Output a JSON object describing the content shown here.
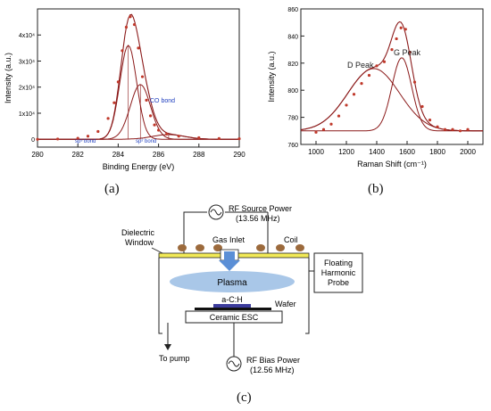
{
  "chart_data": [
    {
      "id": "a",
      "type": "line",
      "caption": "(a)",
      "xlabel": "Binding Energy (eV)",
      "ylabel": "Intensity (a.u.)",
      "xlim": [
        280,
        290
      ],
      "ylim": [
        -3000,
        50000
      ],
      "x_ticks": [
        280,
        282,
        284,
        286,
        288,
        290
      ],
      "x_tick_labels": [
        "280",
        "282",
        "284",
        "286",
        "288",
        "290"
      ],
      "y_ticks": [
        0,
        10000,
        20000,
        30000,
        40000
      ],
      "y_tick_labels": [
        "0",
        "1x10⁴",
        "2x10⁴",
        "3x10⁴",
        "4x10⁴"
      ],
      "grid": false,
      "annotations": [
        "sp³ bond",
        "sp² bond",
        "CO bond"
      ],
      "components": [
        {
          "label": "sp² bond",
          "center": 284.5,
          "height": 36000,
          "sigma": 0.42
        },
        {
          "label": "sp³ bond",
          "center": 285.1,
          "height": 21000,
          "sigma": 0.5
        },
        {
          "label": "CO bond",
          "center": 286.5,
          "height": 1800,
          "sigma": 0.8
        }
      ],
      "series": [
        {
          "kind": "measured",
          "x": [
            280,
            281,
            282,
            282.5,
            283,
            283.5,
            283.8,
            284,
            284.2,
            284.4,
            284.6,
            284.8,
            285,
            285.2,
            285.4,
            285.6,
            285.8,
            286,
            286.4,
            287,
            288,
            289,
            290
          ],
          "y": [
            0,
            100,
            400,
            1200,
            3000,
            8000,
            14000,
            22000,
            34000,
            43000,
            47000,
            44000,
            35000,
            24000,
            15000,
            9000,
            5500,
            3500,
            2000,
            1200,
            600,
            300,
            200
          ]
        }
      ],
      "colors": {
        "data": "#c0392b",
        "fit": "#8b1a1a",
        "text": "#1f3fbf"
      }
    },
    {
      "id": "b",
      "type": "line",
      "caption": "(b)",
      "xlabel": "Raman Shift (cm⁻¹)",
      "ylabel": "Intensity (a.u.)",
      "xlim": [
        900,
        2100
      ],
      "ylim": [
        760,
        860
      ],
      "x_ticks": [
        1000,
        1200,
        1400,
        1600,
        1800,
        2000
      ],
      "x_tick_labels": [
        "1000",
        "1200",
        "1400",
        "1600",
        "1800",
        "2000"
      ],
      "y_ticks": [
        760,
        780,
        800,
        820,
        840,
        860
      ],
      "y_tick_labels": [
        "760",
        "780",
        "800",
        "820",
        "840",
        "860"
      ],
      "grid": false,
      "annotations": [
        "D Peak",
        "G Peak"
      ],
      "baseline": 770,
      "components": [
        {
          "label": "D Peak",
          "center": 1380,
          "height": 46,
          "sigma": 170
        },
        {
          "label": "G Peak",
          "center": 1565,
          "height": 54,
          "sigma": 65
        }
      ],
      "series": [
        {
          "kind": "measured",
          "x": [
            1000,
            1050,
            1100,
            1150,
            1200,
            1250,
            1300,
            1350,
            1400,
            1450,
            1500,
            1530,
            1560,
            1590,
            1620,
            1650,
            1700,
            1750,
            1800,
            1850,
            1900,
            1950,
            2000
          ],
          "y": [
            769,
            771,
            775,
            781,
            789,
            797,
            805,
            811,
            818,
            821,
            830,
            838,
            846,
            845,
            828,
            806,
            788,
            778,
            773,
            771,
            771,
            770,
            771
          ]
        }
      ],
      "colors": {
        "data": "#c0392b",
        "fit": "#8b1a1a",
        "text": "#222222"
      }
    }
  ],
  "diagram": {
    "caption": "(c)",
    "rf_source_power": "RF Source Power",
    "rf_source_freq": "(13.56 MHz)",
    "dielectric_label_1": "Dielectric",
    "dielectric_label_2": "Window",
    "gas_inlet": "Gas Inlet",
    "coil": "Coil",
    "plasma": "Plasma",
    "sample": "a-C:H",
    "wafer": "Wafer",
    "esc": "Ceramic ESC",
    "pump": "To pump",
    "probe_1": "Floating",
    "probe_2": "Harmonic",
    "probe_3": "Probe",
    "rf_bias_power": "RF Bias Power",
    "rf_bias_freq": "(12.56 MHz)",
    "colors": {
      "coil": "#9c6a3c",
      "window": "#f2ea57",
      "plasma": "#a9c7e8",
      "arrow": "#5b8fd6",
      "sample": "#3c3c9c"
    }
  }
}
